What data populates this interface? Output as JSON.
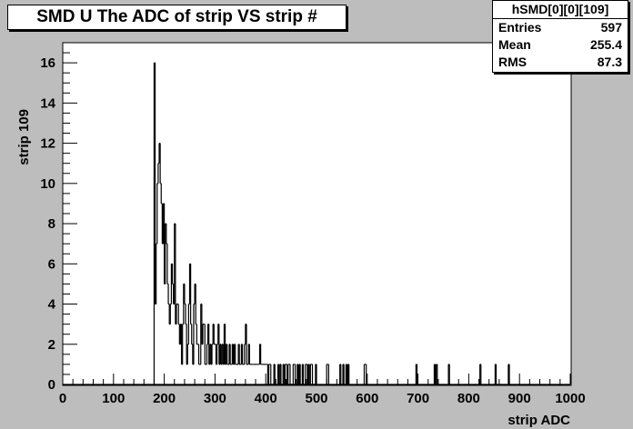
{
  "title": "SMD U The ADC of strip VS strip #",
  "stats": {
    "name": "hSMD[0][0][109]",
    "rows": [
      {
        "label": "Entries",
        "value": "597"
      },
      {
        "label": "Mean",
        "value": "255.4"
      },
      {
        "label": "RMS",
        "value": "87.3"
      }
    ]
  },
  "colors": {
    "frame_background": "#bdbdbd",
    "plot_background": "#ffffff",
    "line": "#000000"
  },
  "chart_data": {
    "type": "bar",
    "title": "SMD U The ADC of strip VS strip #",
    "xlabel": "strip ADC",
    "ylabel": "strip 109",
    "xlim": [
      0,
      1000
    ],
    "ylim": [
      0,
      17
    ],
    "xticks": [
      0,
      100,
      200,
      300,
      400,
      500,
      600,
      700,
      800,
      900,
      1000
    ],
    "yticks": [
      0,
      2,
      4,
      6,
      8,
      10,
      12,
      14,
      16
    ],
    "grid": false,
    "bin_width": 2,
    "style": "histogram-step",
    "x": [
      180,
      182,
      184,
      186,
      188,
      190,
      192,
      194,
      196,
      198,
      200,
      202,
      204,
      206,
      208,
      210,
      212,
      214,
      216,
      218,
      220,
      222,
      224,
      226,
      228,
      230,
      232,
      234,
      236,
      238,
      240,
      242,
      244,
      246,
      248,
      250,
      252,
      254,
      256,
      258,
      260,
      262,
      264,
      266,
      268,
      270,
      272,
      274,
      276,
      278,
      280,
      282,
      284,
      286,
      288,
      290,
      292,
      294,
      296,
      298,
      300,
      302,
      304,
      306,
      308,
      310,
      312,
      314,
      316,
      318,
      320,
      322,
      324,
      326,
      328,
      330,
      332,
      334,
      336,
      338,
      340,
      342,
      344,
      346,
      348,
      350,
      352,
      354,
      356,
      358,
      360,
      362,
      364,
      366,
      368,
      370,
      372,
      374,
      376,
      378,
      380,
      382,
      384,
      386,
      388,
      390,
      392,
      394,
      396,
      398,
      400,
      402,
      404,
      406,
      408,
      410,
      412,
      414,
      416,
      418,
      420,
      422,
      424,
      426,
      428,
      430,
      432,
      434,
      436,
      438,
      440,
      442,
      444,
      446,
      448,
      450,
      452,
      454,
      456,
      458,
      460,
      462,
      464,
      466,
      468,
      470,
      472,
      474,
      476,
      478,
      480,
      482,
      484,
      486,
      488,
      490,
      492,
      494,
      496,
      498,
      520,
      522,
      546,
      552,
      558,
      562,
      594,
      596,
      696,
      732,
      736,
      760,
      822,
      852,
      878
    ],
    "values": [
      16,
      4,
      7,
      10,
      11,
      12,
      10,
      9,
      7,
      9,
      5,
      8,
      7,
      5,
      4,
      3,
      4,
      6,
      5,
      4,
      8,
      3,
      4,
      4,
      3,
      2,
      3,
      1,
      3,
      5,
      4,
      3,
      1,
      2,
      4,
      6,
      3,
      2,
      1,
      4,
      5,
      3,
      2,
      2,
      1,
      1,
      4,
      2,
      3,
      3,
      1,
      1,
      2,
      3,
      1,
      2,
      1,
      2,
      3,
      2,
      2,
      1,
      2,
      3,
      1,
      2,
      1,
      2,
      1,
      3,
      1,
      2,
      1,
      1,
      2,
      1,
      1,
      2,
      1,
      2,
      1,
      1,
      1,
      2,
      1,
      1,
      2,
      1,
      1,
      2,
      3,
      1,
      1,
      2,
      1,
      1,
      1,
      1,
      1,
      1,
      1,
      1,
      1,
      1,
      2,
      1,
      1,
      1,
      1,
      1,
      1,
      1,
      0,
      1,
      1,
      0,
      0,
      0,
      1,
      0,
      0,
      0,
      1,
      0,
      1,
      0,
      0,
      1,
      0,
      1,
      1,
      0,
      1,
      1,
      0,
      0,
      0,
      1,
      1,
      0,
      0,
      1,
      0,
      1,
      0,
      0,
      1,
      0,
      0,
      1,
      1,
      0,
      1,
      0,
      1,
      1,
      0,
      0,
      0,
      1,
      1,
      1,
      1,
      1,
      1,
      1,
      1,
      1,
      1,
      1,
      1,
      1,
      1,
      1,
      1
    ]
  }
}
